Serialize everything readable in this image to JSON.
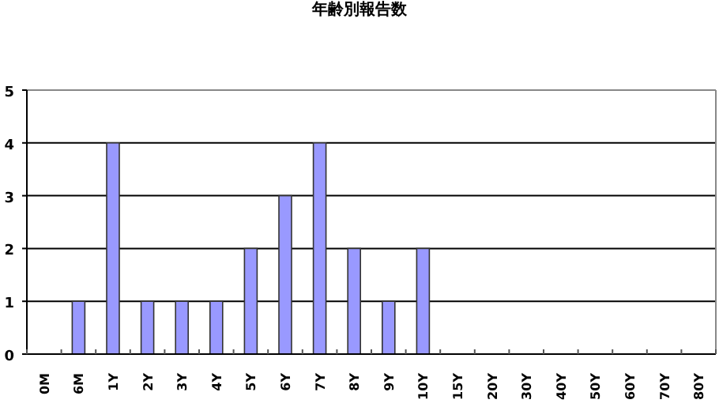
{
  "chart_data": {
    "type": "bar",
    "title": "年齢別報告数",
    "categories": [
      "0M",
      "6M",
      "1Y",
      "2Y",
      "3Y",
      "4Y",
      "5Y",
      "6Y",
      "7Y",
      "8Y",
      "9Y",
      "10Y",
      "15Y",
      "20Y",
      "30Y",
      "40Y",
      "50Y",
      "60Y",
      "70Y",
      "80Y"
    ],
    "values": [
      0,
      1,
      4,
      1,
      1,
      1,
      2,
      3,
      4,
      2,
      1,
      2,
      0,
      0,
      0,
      0,
      0,
      0,
      0,
      0
    ],
    "color": "#9999ff",
    "ylim": [
      0,
      5
    ],
    "yticks": [
      0,
      1,
      2,
      3,
      4,
      5
    ],
    "grid": "y"
  }
}
